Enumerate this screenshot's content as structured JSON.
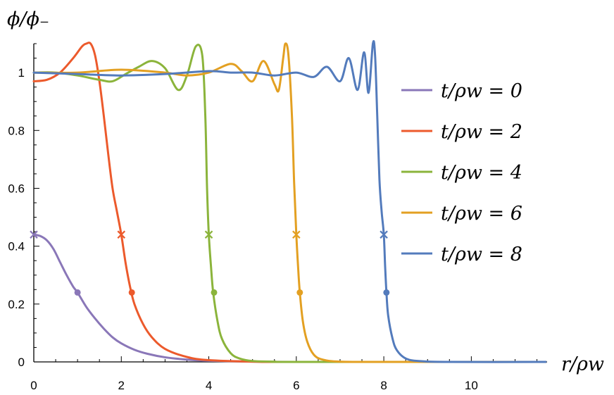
{
  "chart_data": {
    "type": "line",
    "xlabel": "r/ρw",
    "ylabel": "ϕ/ϕ₋",
    "xlim": [
      0,
      11.7
    ],
    "ylim": [
      0,
      1.1
    ],
    "x_ticks": [
      "0",
      "2",
      "4",
      "6",
      "8",
      "10"
    ],
    "y_ticks": [
      "0",
      "0.2",
      "0.4",
      "0.6",
      "0.8",
      "1"
    ],
    "legend_position": "right",
    "series": [
      {
        "name": "t/ρw = 0",
        "color": "#8A77B8",
        "x": [
          0,
          0.15,
          0.3,
          0.45,
          0.6,
          0.75,
          0.9,
          1.0,
          1.2,
          1.4,
          1.6,
          1.8,
          2.0,
          2.3,
          2.6,
          3.0,
          3.5,
          4.0,
          5.0,
          6.0,
          8.0,
          11.7
        ],
        "y": [
          0.44,
          0.435,
          0.42,
          0.39,
          0.345,
          0.3,
          0.26,
          0.24,
          0.19,
          0.15,
          0.115,
          0.085,
          0.064,
          0.042,
          0.028,
          0.016,
          0.008,
          0.004,
          0.001,
          0,
          0,
          0
        ],
        "cross": [
          0,
          0.44
        ],
        "dot": [
          1.0,
          0.24
        ]
      },
      {
        "name": "t/ρw = 2",
        "color": "#EC5A2C",
        "x": [
          0,
          0.3,
          0.6,
          0.9,
          1.1,
          1.2,
          1.3,
          1.4,
          1.5,
          1.6,
          1.7,
          1.8,
          1.9,
          2.0,
          2.1,
          2.2,
          2.3,
          2.5,
          2.7,
          3.0,
          3.5,
          4.0,
          5.0,
          6.0,
          11.7
        ],
        "y": [
          0.97,
          0.975,
          1.0,
          1.05,
          1.09,
          1.1,
          1.1,
          1.06,
          0.97,
          0.85,
          0.72,
          0.6,
          0.52,
          0.44,
          0.34,
          0.26,
          0.2,
          0.13,
          0.085,
          0.045,
          0.017,
          0.006,
          0.001,
          0,
          0
        ],
        "cross": [
          2.0,
          0.44
        ],
        "dot": [
          2.24,
          0.24
        ]
      },
      {
        "name": "t/ρw = 4",
        "color": "#8BB43B",
        "x": [
          0,
          0.5,
          1.0,
          1.5,
          1.8,
          2.1,
          2.4,
          2.7,
          3.0,
          3.3,
          3.5,
          3.7,
          3.85,
          3.92,
          3.96,
          4.0,
          4.05,
          4.1,
          4.2,
          4.3,
          4.5,
          4.7,
          5.0,
          5.5,
          6.0,
          11.7
        ],
        "y": [
          1.0,
          1.0,
          0.99,
          0.975,
          0.97,
          0.995,
          1.02,
          1.04,
          1.015,
          0.94,
          0.99,
          1.09,
          1.06,
          0.85,
          0.6,
          0.44,
          0.33,
          0.24,
          0.14,
          0.08,
          0.03,
          0.012,
          0.003,
          0.001,
          0,
          0
        ],
        "cross": [
          4.0,
          0.44
        ],
        "dot": [
          4.12,
          0.24
        ]
      },
      {
        "name": "t/ρw = 6",
        "color": "#E3A022",
        "x": [
          0,
          1.0,
          2.0,
          3.0,
          3.5,
          4.0,
          4.5,
          4.75,
          5.0,
          5.25,
          5.5,
          5.6,
          5.7,
          5.75,
          5.82,
          5.9,
          5.95,
          6.0,
          6.04,
          6.08,
          6.15,
          6.25,
          6.4,
          6.6,
          7.0,
          8.0,
          11.7
        ],
        "y": [
          1.0,
          1.0,
          1.01,
          1.0,
          0.99,
          1.0,
          1.03,
          1.005,
          0.97,
          1.04,
          0.96,
          0.94,
          1.05,
          1.1,
          1.06,
          0.85,
          0.62,
          0.44,
          0.33,
          0.24,
          0.14,
          0.07,
          0.025,
          0.008,
          0.001,
          0,
          0
        ],
        "cross": [
          6.0,
          0.44
        ],
        "dot": [
          6.08,
          0.24
        ]
      },
      {
        "name": "t/ρw = 8",
        "color": "#537BBC",
        "x": [
          0,
          1.0,
          2.0,
          3.0,
          4.0,
          4.5,
          5.0,
          5.5,
          6.0,
          6.4,
          6.7,
          7.0,
          7.2,
          7.4,
          7.55,
          7.65,
          7.75,
          7.8,
          7.85,
          7.9,
          7.95,
          8.0,
          8.03,
          8.06,
          8.1,
          8.2,
          8.3,
          8.5,
          8.8,
          9.5,
          11.7
        ],
        "y": [
          1.0,
          0.995,
          0.99,
          0.995,
          1.005,
          1.0,
          1.0,
          0.99,
          1.0,
          0.985,
          1.02,
          0.97,
          1.05,
          0.94,
          1.07,
          0.93,
          1.1,
          1.06,
          0.85,
          0.63,
          0.52,
          0.44,
          0.33,
          0.24,
          0.16,
          0.08,
          0.04,
          0.012,
          0.003,
          0,
          0
        ],
        "cross": [
          8.0,
          0.44
        ],
        "dot": [
          8.06,
          0.24
        ]
      }
    ]
  }
}
